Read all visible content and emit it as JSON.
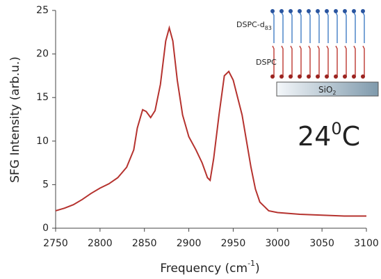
{
  "chart_data": {
    "type": "line",
    "ylabel": "SFG Intensity (arb.u.)",
    "xlabel": {
      "text": "Frequency (cm",
      "sup": "-1",
      "tail": ")"
    },
    "annotation": {
      "text": "24",
      "sup": "0",
      "tail": "C"
    },
    "inset": {
      "top_layer": {
        "text": "DSPC-d",
        "sub": "83"
      },
      "bottom_layer": "DSPC",
      "substrate": {
        "text": "SiO",
        "sub": "2"
      }
    },
    "xlim": [
      2750,
      3100
    ],
    "xticks": [
      2750,
      2800,
      2850,
      2900,
      2950,
      3000,
      3050,
      3100
    ],
    "ylim": [
      0,
      25
    ],
    "yticks": [
      0,
      5,
      10,
      15,
      20,
      25
    ],
    "series": [
      {
        "color": "#b5322e",
        "x": [
          2750,
          2760,
          2770,
          2780,
          2790,
          2800,
          2810,
          2820,
          2830,
          2838,
          2842,
          2848,
          2852,
          2857,
          2862,
          2868,
          2874,
          2878,
          2882,
          2887,
          2893,
          2900,
          2908,
          2915,
          2921,
          2924,
          2928,
          2934,
          2940,
          2945,
          2950,
          2955,
          2960,
          2965,
          2970,
          2975,
          2980,
          2990,
          3000,
          3025,
          3050,
          3075,
          3100
        ],
        "values": [
          2.0,
          2.3,
          2.7,
          3.3,
          4.0,
          4.6,
          5.1,
          5.8,
          7.0,
          9.0,
          11.5,
          13.6,
          13.4,
          12.7,
          13.5,
          16.5,
          21.5,
          23.0,
          21.5,
          17.0,
          13.0,
          10.5,
          9.0,
          7.5,
          5.8,
          5.5,
          8.0,
          13.0,
          17.5,
          18.0,
          17.0,
          15.0,
          13.0,
          10.0,
          7.0,
          4.5,
          3.0,
          2.0,
          1.8,
          1.6,
          1.5,
          1.4,
          1.4
        ]
      }
    ]
  }
}
